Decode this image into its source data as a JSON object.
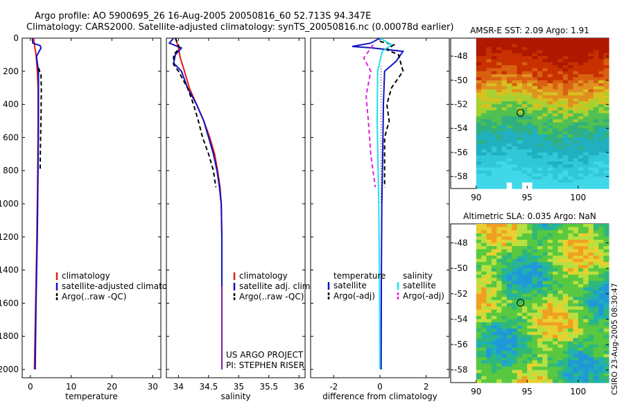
{
  "header": {
    "title_line1": "Argo profile: AO 5900695_26 16-Aug-2005 20050816_60 52.713S 94.347E",
    "title_line2": "Climatology: CARS2000. Satellite-adjusted climatology: synTS_20050816.nc (0.00078d earlier)"
  },
  "colors": {
    "climatology": "#e41a1c",
    "satellite": "#1010c0",
    "argo": "#000000",
    "satellite_sal": "#22ddee",
    "argo_sal": "#e020e0",
    "purple": "#7a1fa0"
  },
  "depth_axis": {
    "ticks": [
      0,
      200,
      400,
      600,
      800,
      1000,
      1200,
      1400,
      1600,
      1800,
      2000
    ],
    "range": [
      0,
      2050
    ]
  },
  "chart_data": [
    {
      "id": "temperature",
      "type": "line",
      "xlabel": "temperature",
      "xlim": [
        -2,
        32
      ],
      "xticks": [
        0,
        10,
        20,
        30
      ],
      "ylim": [
        0,
        2050
      ],
      "y_reversed": true,
      "legend": [
        "climatology",
        "satellite-adjusted climatology",
        "Argo(..raw -QC)"
      ],
      "series": [
        {
          "name": "climatology",
          "style": "solid",
          "color": "#e41a1c",
          "points": [
            [
              0.8,
              0
            ],
            [
              1.0,
              40
            ],
            [
              1.4,
              100
            ],
            [
              1.7,
              200
            ],
            [
              1.9,
              300
            ],
            [
              1.9,
              500
            ],
            [
              1.8,
              800
            ],
            [
              1.6,
              1200
            ],
            [
              1.3,
              1600
            ],
            [
              1.0,
              2000
            ]
          ]
        },
        {
          "name": "satellite-adjusted climatology",
          "style": "solid",
          "color": "#1010c0",
          "points": [
            [
              0.5,
              0
            ],
            [
              0.6,
              30
            ],
            [
              2.4,
              45
            ],
            [
              2.6,
              60
            ],
            [
              1.5,
              110
            ],
            [
              2.0,
              200
            ],
            [
              2.0,
              500
            ],
            [
              1.9,
              800
            ],
            [
              1.7,
              1200
            ],
            [
              1.4,
              1600
            ],
            [
              1.2,
              2000
            ]
          ]
        },
        {
          "name": "Argo(..raw -QC)",
          "style": "dash",
          "color": "#000000",
          "points": [
            [
              2.0,
              180
            ],
            [
              2.6,
              220
            ],
            [
              2.7,
              300
            ],
            [
              2.6,
              500
            ],
            [
              2.5,
              600
            ],
            [
              2.4,
              800
            ]
          ]
        }
      ]
    },
    {
      "id": "salinity",
      "type": "line",
      "xlabel": "salinity",
      "xlim": [
        33.8,
        36.1
      ],
      "xticks": [
        34,
        34.5,
        35,
        35.5,
        36
      ],
      "ylim": [
        0,
        2050
      ],
      "y_reversed": true,
      "legend": [
        "climatology",
        "satellite adj. clim.",
        "Argo(..raw -QC)"
      ],
      "annotation": [
        "US ARGO PROJECT",
        "PI: STEPHEN RISER"
      ],
      "series": [
        {
          "name": "climatology",
          "style": "solid",
          "color": "#e41a1c",
          "points": [
            [
              33.95,
              0
            ],
            [
              34.0,
              60
            ],
            [
              34.03,
              120
            ],
            [
              34.1,
              200
            ],
            [
              34.18,
              300
            ],
            [
              34.3,
              400
            ],
            [
              34.42,
              500
            ],
            [
              34.52,
              600
            ],
            [
              34.6,
              700
            ],
            [
              34.65,
              800
            ],
            [
              34.69,
              900
            ],
            [
              34.71,
              1000
            ],
            [
              34.72,
              1200
            ],
            [
              34.72,
              1500
            ]
          ]
        },
        {
          "name": "satellite adj. clim.",
          "style": "solid",
          "color": "#1010c0",
          "points": [
            [
              33.92,
              0
            ],
            [
              33.85,
              30
            ],
            [
              34.05,
              60
            ],
            [
              33.95,
              100
            ],
            [
              33.92,
              150
            ],
            [
              34.05,
              200
            ],
            [
              34.15,
              300
            ],
            [
              34.3,
              400
            ],
            [
              34.42,
              500
            ],
            [
              34.5,
              600
            ],
            [
              34.58,
              700
            ],
            [
              34.64,
              800
            ],
            [
              34.68,
              900
            ],
            [
              34.71,
              1000
            ],
            [
              34.72,
              1200
            ],
            [
              34.72,
              1500
            ]
          ]
        },
        {
          "name": "Argo(..raw -QC)",
          "style": "dash",
          "color": "#000000",
          "points": [
            [
              33.95,
              0
            ],
            [
              34.02,
              60
            ],
            [
              33.92,
              100
            ],
            [
              33.92,
              160
            ],
            [
              34.0,
              200
            ],
            [
              34.15,
              300
            ],
            [
              34.25,
              400
            ],
            [
              34.33,
              500
            ],
            [
              34.4,
              600
            ],
            [
              34.5,
              700
            ],
            [
              34.58,
              800
            ],
            [
              34.62,
              900
            ]
          ]
        },
        {
          "name": "deep",
          "style": "solid",
          "color": "#7a1fa0",
          "points": [
            [
              34.72,
              1500
            ],
            [
              34.72,
              2000
            ]
          ]
        }
      ]
    },
    {
      "id": "difference",
      "type": "line",
      "xlabel": "difference from climatology",
      "xlim": [
        -3,
        3
      ],
      "xticks": [
        -2,
        0,
        2
      ],
      "ylim": [
        0,
        2050
      ],
      "y_reversed": true,
      "legend_left_title": "temperature",
      "legend_left": [
        "satellite",
        "Argo(-adj)"
      ],
      "legend_right_title": "salinity",
      "legend_right": [
        "satellite",
        "Argo(-adj)"
      ],
      "series": [
        {
          "name": "temperature satellite",
          "style": "solid",
          "color": "#1010c0",
          "points": [
            [
              0,
              0
            ],
            [
              -0.4,
              30
            ],
            [
              -1.2,
              50
            ],
            [
              -0.3,
              60
            ],
            [
              1.0,
              80
            ],
            [
              0.7,
              140
            ],
            [
              0.2,
              200
            ],
            [
              0.15,
              400
            ],
            [
              0.12,
              700
            ],
            [
              0.08,
              1000
            ],
            [
              0.06,
              1500
            ],
            [
              0.05,
              2000
            ]
          ]
        },
        {
          "name": "temperature Argo(-adj)",
          "style": "dash",
          "color": "#000000",
          "points": [
            [
              0,
              20
            ],
            [
              0.6,
              40
            ],
            [
              0.3,
              70
            ],
            [
              0.8,
              100
            ],
            [
              1.0,
              200
            ],
            [
              0.5,
              300
            ],
            [
              0.3,
              400
            ],
            [
              0.4,
              500
            ],
            [
              0.2,
              600
            ],
            [
              0.2,
              900
            ]
          ]
        },
        {
          "name": "salinity satellite",
          "style": "solid",
          "color": "#22ddee",
          "points": [
            [
              0,
              0
            ],
            [
              0.5,
              40
            ],
            [
              0.1,
              80
            ],
            [
              -0.1,
              200
            ],
            [
              -0.12,
              500
            ],
            [
              -0.05,
              1000
            ],
            [
              -0.02,
              1500
            ],
            [
              0,
              2000
            ]
          ]
        },
        {
          "name": "salinity Argo(-adj)",
          "style": "dash",
          "color": "#e020e0",
          "points": [
            [
              -0.3,
              40
            ],
            [
              -0.7,
              120
            ],
            [
              -0.4,
              200
            ],
            [
              -0.6,
              350
            ],
            [
              -0.5,
              500
            ],
            [
              -0.4,
              700
            ],
            [
              -0.2,
              900
            ]
          ]
        }
      ]
    },
    {
      "id": "sst_map",
      "type": "heatmap",
      "title": "AMSR-E SST: 2.09 Argo: 1.91",
      "xticks": [
        90,
        95,
        100
      ],
      "yticks": [
        -48,
        -50,
        -52,
        -54,
        -56,
        -58
      ],
      "xlim": [
        87.5,
        103
      ],
      "ylim": [
        -59,
        -46.5
      ],
      "data_xlim": [
        90,
        103
      ],
      "marker": [
        94.35,
        -52.71
      ]
    },
    {
      "id": "sla_map",
      "type": "heatmap",
      "title": "Altimetric SLA: 0.035 Argo: NaN",
      "xticks": [
        90,
        95,
        100
      ],
      "yticks": [
        -48,
        -50,
        -52,
        -54,
        -56,
        -58
      ],
      "xlim": [
        87.5,
        103
      ],
      "ylim": [
        -59,
        -46.5
      ],
      "data_xlim": [
        90,
        103
      ],
      "marker": [
        94.35,
        -52.71
      ]
    }
  ],
  "side_stamp": "CSIRO 23-Aug-2005 08:30:47"
}
